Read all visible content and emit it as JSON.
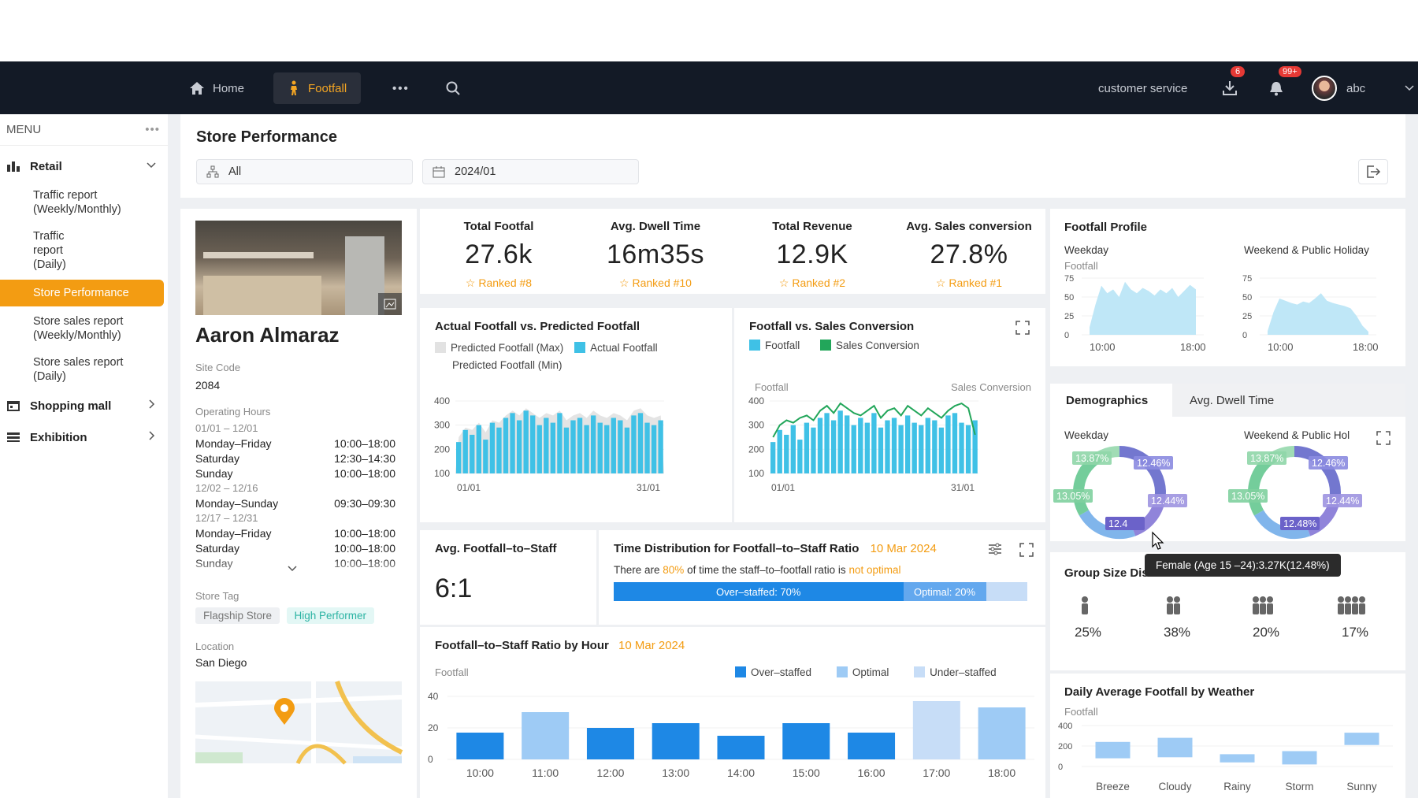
{
  "topbar": {
    "home_label": "Home",
    "footfall_label": "Footfall",
    "more_label": "•••",
    "customer_service": "customer service",
    "download_badge": "6",
    "bell_badge": "99+",
    "user_name": "abc"
  },
  "sidebar": {
    "menu_label": "MENU",
    "menu_more": "•••",
    "retail": {
      "label": "Retail",
      "items": [
        {
          "label": "Traffic report (Weekly/Monthly)"
        },
        {
          "label": "Traffic report (Daily)"
        },
        {
          "label": "Store Performance"
        },
        {
          "label": "Store sales report (Weekly/Monthly)"
        },
        {
          "label": "Store sales report (Daily)"
        }
      ]
    },
    "shopping_mall": "Shopping mall",
    "exhibition": "Exhibition"
  },
  "header": {
    "title": "Store Performance",
    "store_filter": "All",
    "date_filter": "2024/01"
  },
  "store": {
    "name": "Aaron Almaraz",
    "site_code_label": "Site Code",
    "site_code": "2084",
    "hours_label": "Operating Hours",
    "hours": [
      {
        "range": "01/01 – 12/01",
        "rows": [
          {
            "day": "Monday–Friday",
            "time": "10:00–18:00"
          },
          {
            "day": "Saturday",
            "time": "12:30–14:30"
          },
          {
            "day": "Sunday",
            "time": "10:00–18:00"
          }
        ]
      },
      {
        "range": "12/02 – 12/16",
        "rows": [
          {
            "day": "Monday–Sunday",
            "time": "09:30–09:30"
          }
        ]
      },
      {
        "range": "12/17 – 12/31",
        "rows": [
          {
            "day": "Monday–Friday",
            "time": "10:00–18:00"
          },
          {
            "day": "Saturday",
            "time": "10:00–18:00"
          },
          {
            "day": "Sunday",
            "time": "10:00–18:00"
          }
        ]
      }
    ],
    "tag_label": "Store Tag",
    "tags": [
      "Flagship Store",
      "High Performer"
    ],
    "location_label": "Location",
    "location": "San Diego"
  },
  "kpis": [
    {
      "title": "Total Footfal",
      "value": "27.6k",
      "rank": "Ranked #8"
    },
    {
      "title": "Avg. Dwell Time",
      "value": "16m35s",
      "rank": "Ranked #10"
    },
    {
      "title": "Total Revenue",
      "value": "12.9K",
      "rank": "Ranked #2"
    },
    {
      "title": "Avg. Sales conversion",
      "value": "27.8%",
      "rank": "Ranked #1"
    }
  ],
  "actual_vs_predicted": {
    "title": "Actual Footfall vs. Predicted Footfall",
    "legend_max": "Predicted Footfall (Max)",
    "legend_actual": "Actual Footfall",
    "legend_min": "Predicted Footfall (Min)",
    "x_start": "01/01",
    "x_end": "31/01",
    "y_ticks": [
      "400",
      "300",
      "200",
      "100"
    ]
  },
  "footfall_vs_conversion": {
    "title": "Footfall vs. Sales Conversion",
    "legend_footfall": "Footfall",
    "legend_conversion": "Sales Conversion",
    "left_axis": "Footfall",
    "right_axis": "Sales Conversion",
    "x_start": "01/01",
    "x_end": "31/01",
    "y_ticks": [
      "400",
      "300",
      "200",
      "100"
    ]
  },
  "footfall_to_staff": {
    "title": "Avg. Footfall–to–Staff",
    "value": "6:1"
  },
  "time_distribution": {
    "title": "Time Distribution for Footfall–to–Staff Ratio",
    "date": "10 Mar 2024",
    "text_before": "There are ",
    "highlight_pct": "80%",
    "text_middle": " of time the staff–to–footfall ratio is ",
    "highlight_status": "not optimal",
    "over_label": "Over–staffed: 70%",
    "optimal_label": "Optimal: 20%",
    "over_pct": 70,
    "optimal_pct": 20,
    "under_pct": 10
  },
  "ratio_by_hour": {
    "title": "Footfall–to–Staff Ratio by Hour",
    "date": "10 Mar 2024",
    "y_label": "Footfall",
    "legend": [
      "Over–staffed",
      "Optimal",
      "Under–staffed"
    ],
    "y_ticks": [
      "40",
      "20",
      "0"
    ]
  },
  "profile": {
    "title": "Footfall Profile",
    "weekday": "Weekday",
    "weekend": "Weekend & Public Holiday",
    "y_label": "Footfall",
    "y_ticks": [
      "75",
      "50",
      "25",
      "0"
    ],
    "x_ticks": [
      "10:00",
      "18:00"
    ]
  },
  "demographics": {
    "tab_demo": "Demographics",
    "tab_dwell": "Avg. Dwell Time",
    "weekday": "Weekday",
    "weekend": "Weekend & Public Hol",
    "labels": [
      "13.87%",
      "12.46%",
      "13.05%",
      "12.44%",
      "12.48%"
    ],
    "weekday_bottom_label": "12.4",
    "tooltip": "Female (Age 15 –24):3.27K(12.48%)"
  },
  "group_size": {
    "title": "Group Size Distribution",
    "values": [
      "25%",
      "38%",
      "20%",
      "17%"
    ]
  },
  "weather": {
    "title": "Daily Average Footfall by Weather",
    "y_label": "Footfall",
    "y_ticks": [
      "400",
      "200",
      "0"
    ],
    "categories": [
      "Breeze",
      "Cloudy",
      "Rainy",
      "Storm",
      "Sunny"
    ]
  },
  "chart_data": [
    {
      "type": "bar",
      "title": "Actual Footfall vs. Predicted Footfall",
      "x_start": "01/01",
      "x_end": "31/01",
      "ylim": [
        100,
        400
      ],
      "series": [
        {
          "name": "Actual Footfall",
          "values": [
            230,
            280,
            260,
            300,
            240,
            310,
            290,
            330,
            350,
            320,
            360,
            340,
            300,
            330,
            310,
            350,
            290,
            320,
            330,
            300,
            340,
            310,
            300,
            330,
            320,
            290,
            340,
            350,
            310,
            300,
            320
          ]
        },
        {
          "name": "Predicted Footfall (Max)",
          "values": [
            250,
            290,
            280,
            310,
            270,
            320,
            310,
            340,
            360,
            340,
            370,
            350,
            330,
            350,
            340,
            360,
            320,
            340,
            350,
            330,
            360,
            340,
            330,
            350,
            340,
            320,
            360,
            370,
            340,
            330,
            340
          ]
        }
      ]
    },
    {
      "type": "bar",
      "title": "Footfall vs. Sales Conversion",
      "x_start": "01/01",
      "x_end": "31/01",
      "ylim": [
        100,
        400
      ],
      "series": [
        {
          "name": "Footfall",
          "values": [
            230,
            280,
            260,
            300,
            240,
            310,
            290,
            330,
            350,
            320,
            360,
            340,
            300,
            330,
            310,
            350,
            290,
            320,
            330,
            300,
            340,
            310,
            300,
            330,
            320,
            290,
            340,
            350,
            310,
            300,
            320
          ]
        },
        {
          "name": "Sales Conversion",
          "values": [
            250,
            300,
            320,
            310,
            330,
            340,
            320,
            360,
            380,
            350,
            390,
            370,
            350,
            340,
            360,
            380,
            330,
            360,
            370,
            340,
            380,
            360,
            340,
            370,
            350,
            330,
            360,
            380,
            390,
            370,
            260
          ]
        }
      ]
    },
    {
      "type": "bar",
      "title": "Footfall–to–Staff Ratio by Hour",
      "categories": [
        "10:00",
        "11:00",
        "12:00",
        "13:00",
        "14:00",
        "15:00",
        "16:00",
        "17:00",
        "18:00"
      ],
      "ylim": [
        0,
        40
      ],
      "values": [
        17,
        30,
        20,
        23,
        15,
        23,
        17,
        37,
        33
      ],
      "status": [
        "Over–staffed",
        "Optimal",
        "Over–staffed",
        "Over–staffed",
        "Over–staffed",
        "Over–staffed",
        "Over–staffed",
        "Under–staffed",
        "Optimal"
      ]
    },
    {
      "type": "area",
      "title": "Footfall Profile — Weekday",
      "ylim": [
        0,
        75
      ],
      "values": [
        10,
        40,
        65,
        55,
        60,
        50,
        70,
        60,
        55,
        62,
        58,
        52,
        60,
        55,
        62,
        50,
        58,
        66,
        60
      ]
    },
    {
      "type": "area",
      "title": "Footfall Profile — Weekend & Public Holiday",
      "ylim": [
        0,
        75
      ],
      "values": [
        5,
        30,
        48,
        45,
        42,
        40,
        44,
        42,
        48,
        55,
        45,
        42,
        40,
        38,
        35,
        25,
        12,
        4
      ]
    },
    {
      "type": "bar",
      "title": "Daily Average Footfall by Weather",
      "categories": [
        "Breeze",
        "Cloudy",
        "Rainy",
        "Storm",
        "Sunny"
      ],
      "ylim": [
        0,
        400
      ],
      "values": [
        [
          80,
          240
        ],
        [
          90,
          280
        ],
        [
          40,
          120
        ],
        [
          20,
          150
        ],
        [
          210,
          330
        ]
      ]
    }
  ],
  "colors": {
    "accent": "#f39c12",
    "topbar": "#131a26",
    "bar_blue": "#1e88e5",
    "bar_cyan": "#3fc1e6",
    "bar_light": "#9ecbf5",
    "line_green": "#22a65a"
  }
}
